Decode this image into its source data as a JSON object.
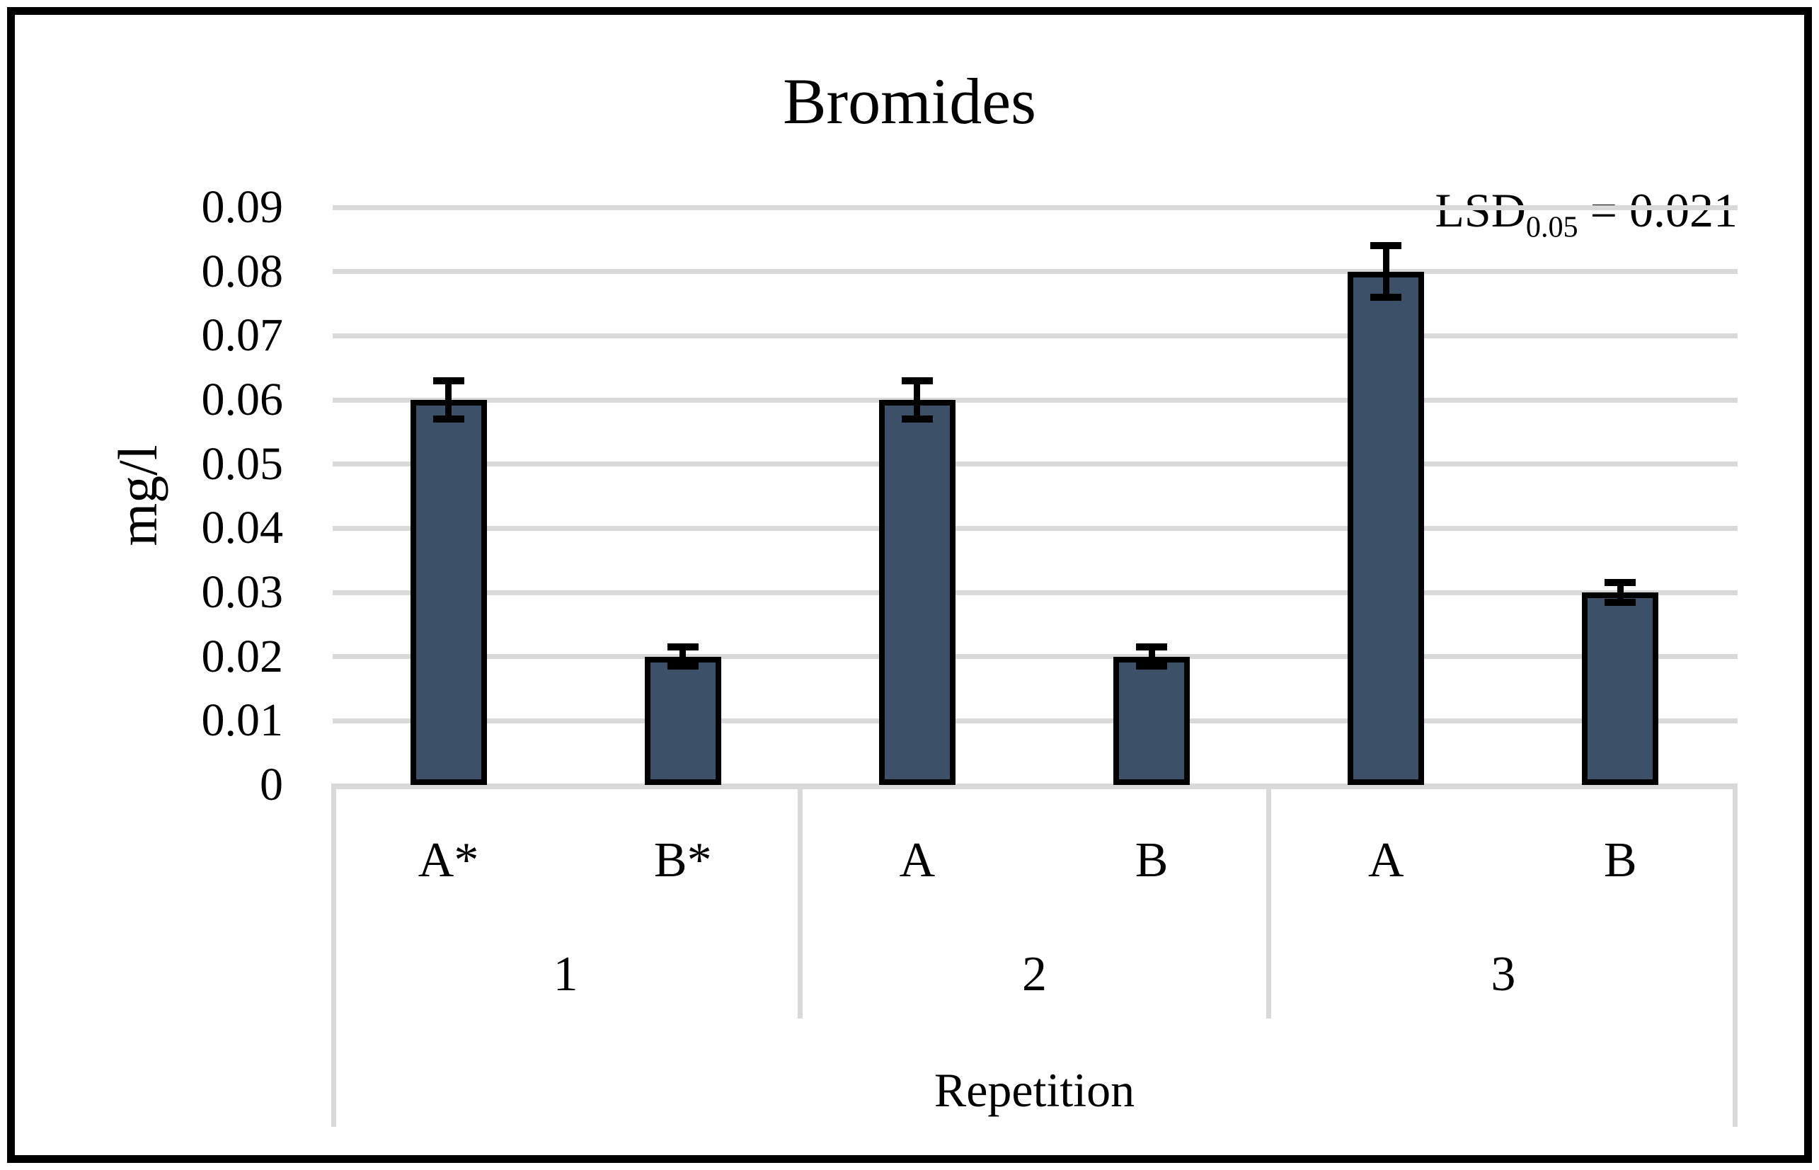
{
  "chart_data": {
    "type": "bar",
    "title": "Bromides",
    "ylabel": "mg/l",
    "xlabel": "Repetition",
    "annotation": {
      "prefix": "LSD",
      "subscript": "0.05",
      "suffix": " = 0.021"
    },
    "ylim": [
      0,
      0.09
    ],
    "ytick_step": 0.01,
    "yticks": [
      {
        "value": 0,
        "label": "0"
      },
      {
        "value": 0.01,
        "label": "0.01"
      },
      {
        "value": 0.02,
        "label": "0.02"
      },
      {
        "value": 0.03,
        "label": "0.03"
      },
      {
        "value": 0.04,
        "label": "0.04"
      },
      {
        "value": 0.05,
        "label": "0.05"
      },
      {
        "value": 0.06,
        "label": "0.06"
      },
      {
        "value": 0.07,
        "label": "0.07"
      },
      {
        "value": 0.08,
        "label": "0.08"
      },
      {
        "value": 0.09,
        "label": "0.09"
      }
    ],
    "grid": true,
    "legend": "none",
    "groups": [
      {
        "label": "1",
        "bars": [
          {
            "label": "A*",
            "value": 0.06,
            "error": 0.003
          },
          {
            "label": "B*",
            "value": 0.02,
            "error": 0.0015
          }
        ]
      },
      {
        "label": "2",
        "bars": [
          {
            "label": "A",
            "value": 0.06,
            "error": 0.003
          },
          {
            "label": "B",
            "value": 0.02,
            "error": 0.0015
          }
        ]
      },
      {
        "label": "3",
        "bars": [
          {
            "label": "A",
            "value": 0.08,
            "error": 0.004
          },
          {
            "label": "B",
            "value": 0.03,
            "error": 0.0015
          }
        ]
      }
    ],
    "colors": {
      "bar_fill": "#3C5168",
      "bar_border": "#000000",
      "gridline": "#D9D9D9",
      "error_bar": "#000000",
      "text": "#000000",
      "figure_border": "#000000",
      "background": "#FFFFFF"
    }
  }
}
